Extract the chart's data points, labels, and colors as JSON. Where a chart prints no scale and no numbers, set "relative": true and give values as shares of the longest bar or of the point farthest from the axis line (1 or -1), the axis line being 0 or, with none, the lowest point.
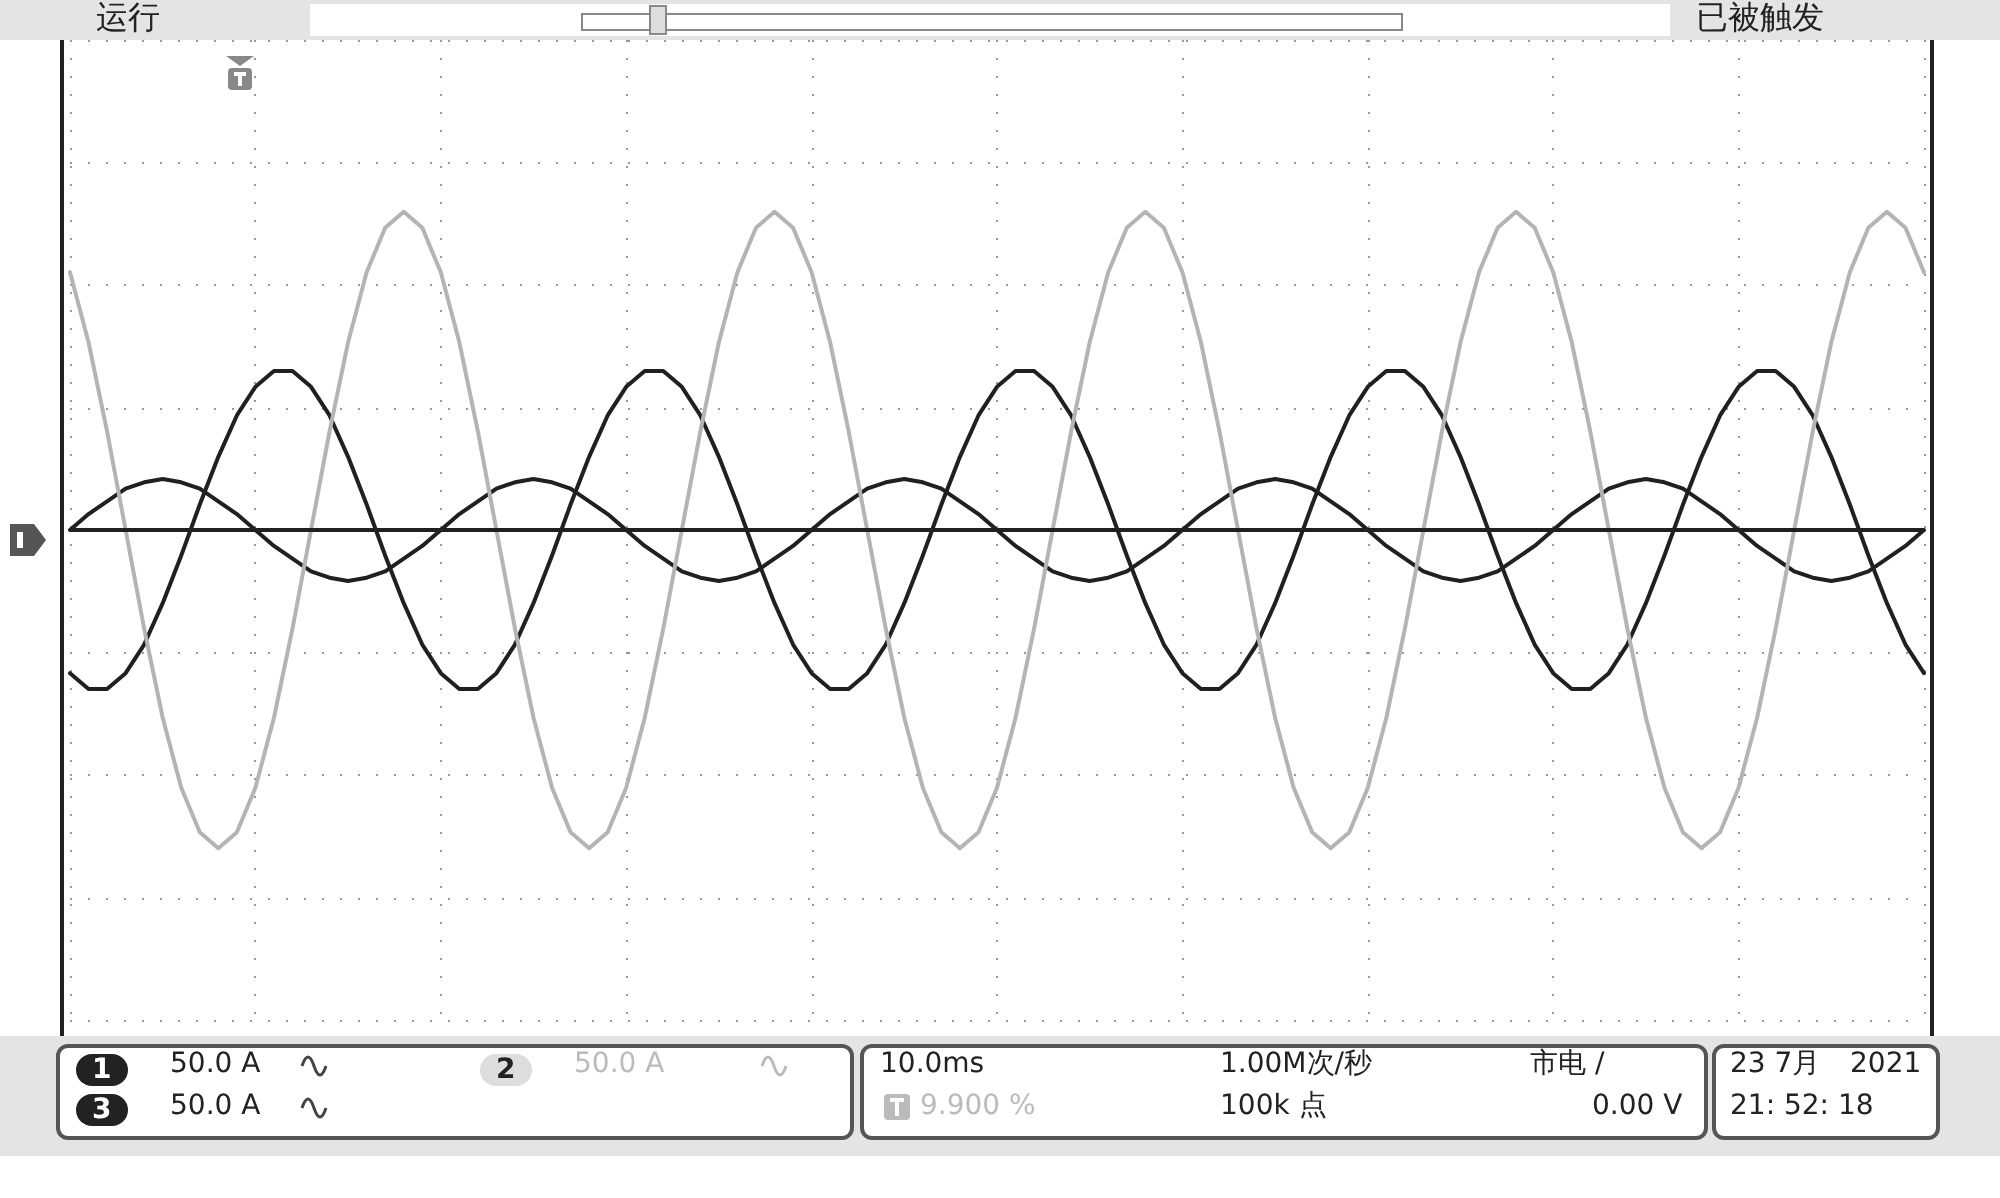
{
  "chart_data": {
    "type": "line",
    "relative": true,
    "grid": true,
    "marker": "none",
    "line_style": "solid",
    "categories": [
      null,
      null,
      null,
      null,
      null,
      null,
      null,
      null,
      null,
      null,
      null,
      null,
      null,
      null,
      null,
      null,
      null,
      null,
      null,
      null,
      null,
      null,
      null,
      null,
      null,
      null,
      null,
      null,
      null,
      null,
      null,
      null,
      null,
      null,
      null,
      null,
      null,
      null,
      null,
      null,
      null,
      null,
      null,
      null,
      null,
      null,
      null,
      null,
      null,
      null,
      null,
      null,
      null,
      null,
      null,
      null,
      null,
      null,
      null,
      null,
      null,
      null,
      null,
      null,
      null,
      null,
      null,
      null,
      null,
      null,
      null,
      null,
      null,
      null,
      null,
      null,
      null,
      null,
      null,
      null,
      null,
      null,
      null,
      null,
      null,
      null,
      null,
      null,
      null,
      null,
      null,
      null,
      null,
      null,
      null,
      null,
      null,
      null,
      null,
      null,
      null
    ],
    "series": [
      {
        "color": "#b4b4b4",
        "values": [
          0.81,
          0.59,
          0.31,
          0,
          -0.31,
          -0.59,
          -0.81,
          -0.95,
          -1,
          -0.95,
          -0.81,
          -0.59,
          -0.31,
          0,
          0.31,
          0.59,
          0.81,
          0.95,
          1,
          0.95,
          0.81,
          0.59,
          0.31,
          0,
          -0.31,
          -0.59,
          -0.81,
          -0.95,
          -1,
          -0.95,
          -0.81,
          -0.59,
          -0.31,
          0,
          0.31,
          0.59,
          0.81,
          0.95,
          1,
          0.95,
          0.81,
          0.59,
          0.31,
          0,
          -0.31,
          -0.59,
          -0.81,
          -0.95,
          -1,
          -0.95,
          -0.81,
          -0.59,
          -0.31,
          0,
          0.31,
          0.59,
          0.81,
          0.95,
          1,
          0.95,
          0.81,
          0.59,
          0.31,
          0,
          -0.31,
          -0.59,
          -0.81,
          -0.95,
          -1,
          -0.95,
          -0.81,
          -0.59,
          -0.31,
          0,
          0.31,
          0.59,
          0.81,
          0.95,
          1,
          0.95,
          0.81,
          0.59,
          0.31,
          0,
          -0.31,
          -0.59,
          -0.81,
          -0.95,
          -1,
          -0.95,
          -0.81,
          -0.59,
          -0.31,
          0,
          0.31,
          0.59,
          0.81,
          0.95,
          1,
          0.95,
          0.81
        ]
      },
      {
        "color": "#202020",
        "values": [
          -0.45,
          -0.5,
          -0.5,
          -0.45,
          -0.36,
          -0.23,
          -0.08,
          0.08,
          0.23,
          0.36,
          0.45,
          0.5,
          0.5,
          0.45,
          0.36,
          0.23,
          0.08,
          -0.08,
          -0.23,
          -0.36,
          -0.45,
          -0.5,
          -0.5,
          -0.45,
          -0.36,
          -0.23,
          -0.08,
          0.08,
          0.23,
          0.36,
          0.45,
          0.5,
          0.5,
          0.45,
          0.36,
          0.23,
          0.08,
          -0.08,
          -0.23,
          -0.36,
          -0.45,
          -0.5,
          -0.5,
          -0.45,
          -0.36,
          -0.23,
          -0.08,
          0.08,
          0.23,
          0.36,
          0.45,
          0.5,
          0.5,
          0.45,
          0.36,
          0.23,
          0.08,
          -0.08,
          -0.23,
          -0.36,
          -0.45,
          -0.5,
          -0.5,
          -0.45,
          -0.36,
          -0.23,
          -0.08,
          0.08,
          0.23,
          0.36,
          0.45,
          0.5,
          0.5,
          0.45,
          0.36,
          0.23,
          0.08,
          -0.08,
          -0.23,
          -0.36,
          -0.45,
          -0.5,
          -0.5,
          -0.45,
          -0.36,
          -0.23,
          -0.08,
          0.08,
          0.23,
          0.36,
          0.45,
          0.5,
          0.5,
          0.45,
          0.36,
          0.23,
          0.08,
          -0.08,
          -0.23,
          -0.36,
          -0.45
        ]
      },
      {
        "color": "#202020",
        "values": [
          0,
          0.05,
          0.09,
          0.13,
          0.15,
          0.16,
          0.15,
          0.13,
          0.09,
          0.05,
          0,
          -0.05,
          -0.09,
          -0.13,
          -0.15,
          -0.16,
          -0.15,
          -0.13,
          -0.09,
          -0.05,
          0,
          0.05,
          0.09,
          0.13,
          0.15,
          0.16,
          0.15,
          0.13,
          0.09,
          0.05,
          0,
          -0.05,
          -0.09,
          -0.13,
          -0.15,
          -0.16,
          -0.15,
          -0.13,
          -0.09,
          -0.05,
          0,
          0.05,
          0.09,
          0.13,
          0.15,
          0.16,
          0.15,
          0.13,
          0.09,
          0.05,
          0,
          -0.05,
          -0.09,
          -0.13,
          -0.15,
          -0.16,
          -0.15,
          -0.13,
          -0.09,
          -0.05,
          0,
          0.05,
          0.09,
          0.13,
          0.15,
          0.16,
          0.15,
          0.13,
          0.09,
          0.05,
          0,
          -0.05,
          -0.09,
          -0.13,
          -0.15,
          -0.16,
          -0.15,
          -0.13,
          -0.09,
          -0.05,
          0,
          0.05,
          0.09,
          0.13,
          0.15,
          0.16,
          0.15,
          0.13,
          0.09,
          0.05,
          0,
          -0.05,
          -0.09,
          -0.13,
          -0.15,
          -0.16,
          -0.15,
          -0.13,
          -0.09,
          -0.05,
          0
        ]
      }
    ],
    "ref_lines": [
      {
        "axis": "y",
        "value": 0,
        "color": "#202020"
      }
    ],
    "annotations": [
      "运行",
      "已被触发",
      "1",
      "50.0 A",
      "2",
      "50.0 A",
      "3",
      "50.0 A",
      "10.0ms",
      "9.900 %",
      "1.00M次/秒",
      "100k 点",
      "市电 /",
      "0.00 V",
      "23 7月",
      "2021",
      "21: 52: 18"
    ]
  }
}
